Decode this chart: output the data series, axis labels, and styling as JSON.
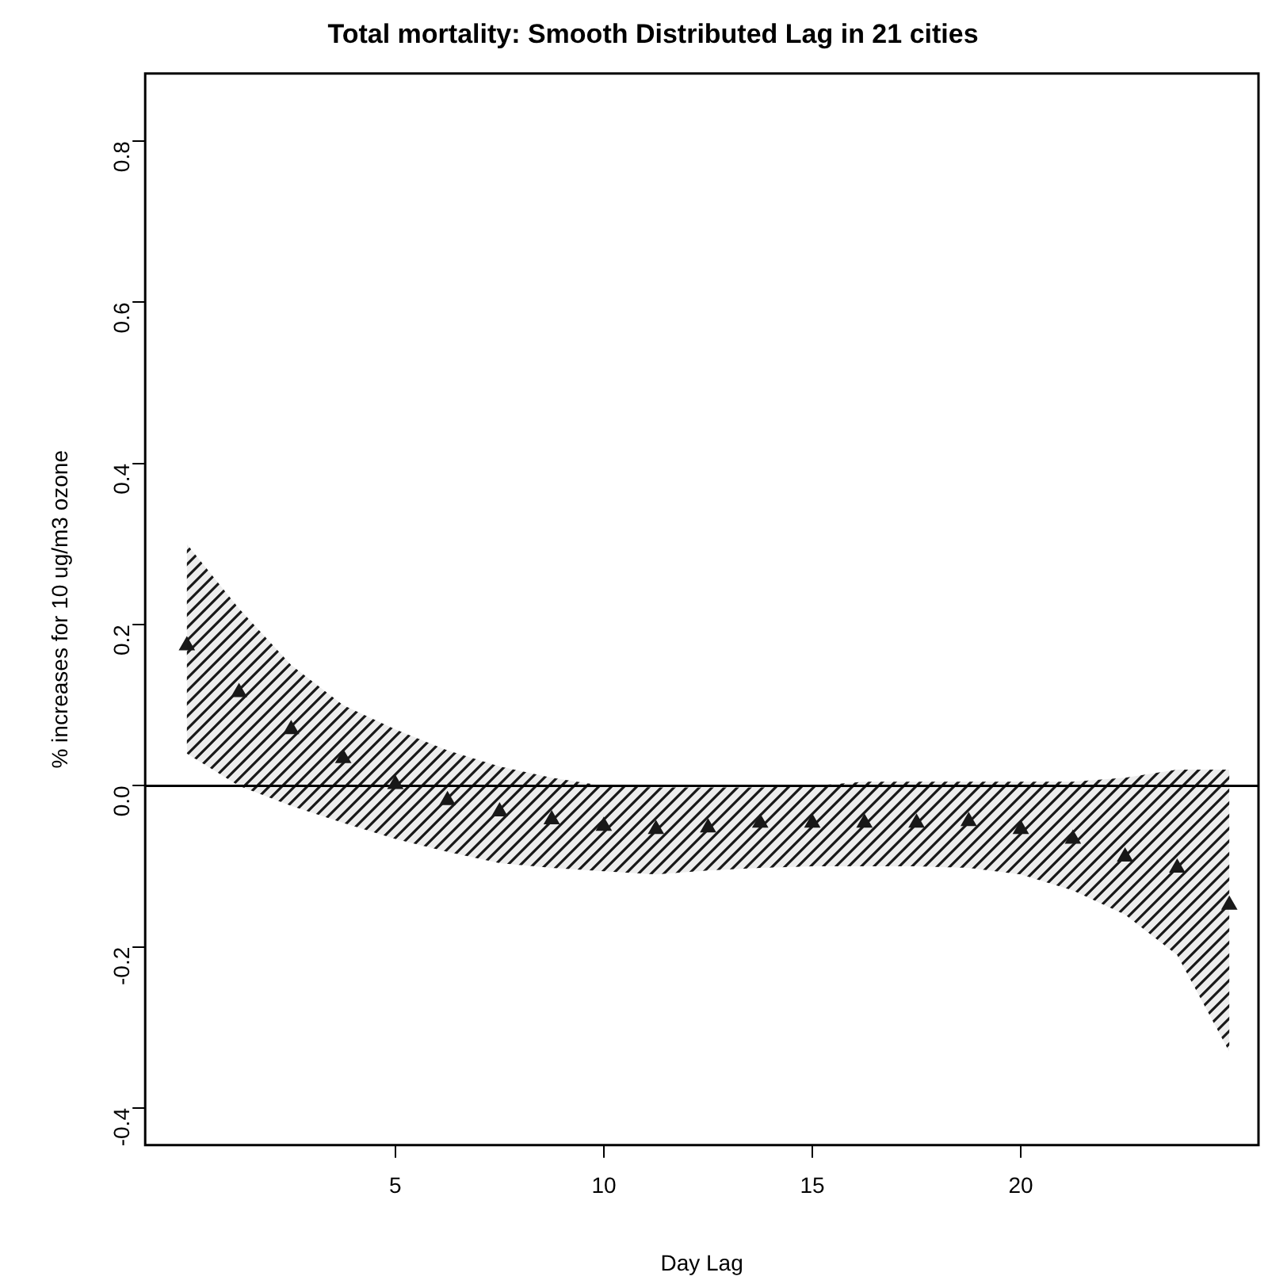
{
  "chart_data": {
    "type": "scatter",
    "title": "Total mortality: Smooth Distributed Lag in 21 cities",
    "xlabel": "Day Lag",
    "ylabel": "% increases for 10 ug/m3 ozone",
    "x": [
      0,
      1.25,
      2.5,
      3.75,
      5,
      6.25,
      7.5,
      8.75,
      10,
      11.25,
      12.5,
      13.75,
      15,
      16.25,
      17.5,
      18.75,
      20,
      21.25,
      22.5,
      23.75,
      25
    ],
    "series": [
      {
        "color": "#1a1a1a",
        "values": [
          0.174,
          0.116,
          0.07,
          0.034,
          0.002,
          -0.018,
          -0.032,
          -0.042,
          -0.05,
          -0.054,
          -0.052,
          -0.046,
          -0.046,
          -0.046,
          -0.046,
          -0.044,
          -0.054,
          -0.066,
          -0.088,
          -0.102,
          -0.148
        ],
        "upper": [
          0.3,
          0.22,
          0.15,
          0.1,
          0.07,
          0.044,
          0.024,
          0.01,
          0.0,
          -0.002,
          -0.002,
          -0.002,
          0.0,
          0.005,
          0.005,
          0.005,
          0.005,
          0.005,
          0.01,
          0.02,
          0.02
        ],
        "lower": [
          0.04,
          0.0,
          -0.025,
          -0.046,
          -0.066,
          -0.082,
          -0.096,
          -0.102,
          -0.106,
          -0.11,
          -0.105,
          -0.102,
          -0.1,
          -0.1,
          -0.1,
          -0.102,
          -0.11,
          -0.13,
          -0.16,
          -0.21,
          -0.33
        ]
      }
    ],
    "xlim": [
      -1,
      25.7
    ],
    "xticks": [
      5,
      10,
      15,
      20
    ],
    "ylim": [
      -0.446,
      0.884
    ],
    "yticks": [
      {
        "value": -0.4,
        "label": "-0.4"
      },
      {
        "value": -0.2,
        "label": "-0.2"
      },
      {
        "value": 0,
        "label": "0.0"
      },
      {
        "value": 0.2,
        "label": "0.2"
      },
      {
        "value": 0.4,
        "label": "0.4"
      },
      {
        "value": 0.6,
        "label": "0.6"
      },
      {
        "value": 0.8,
        "label": "0.8"
      }
    ],
    "ref_lines": [
      {
        "axis": "y",
        "value": 0,
        "color": "#000000"
      }
    ],
    "marker": "triangle",
    "grid": false,
    "legend": false
  }
}
